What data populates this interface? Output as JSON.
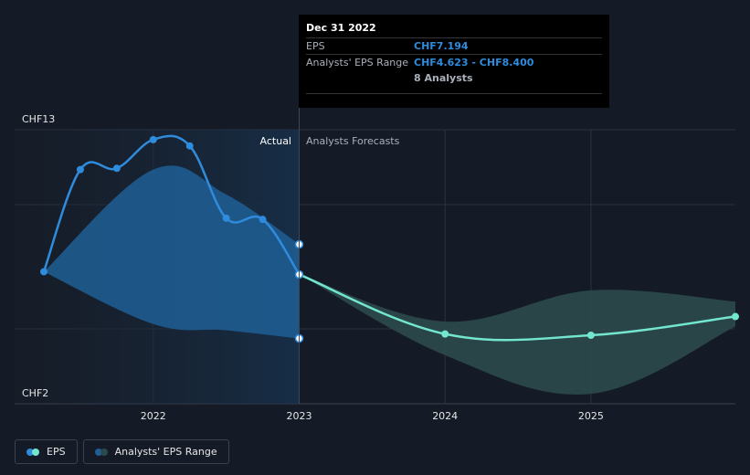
{
  "colors": {
    "background": "#151b26",
    "eps_actual": "#2f8bdc",
    "eps_forecast": "#73e6cf",
    "range_actual": "#1f5f95",
    "range_forecast": "#2b4a4c",
    "grid": "#2a3140"
  },
  "tooltip": {
    "date": "Dec 31 2022",
    "eps_label": "EPS",
    "eps_value": "CHF7.194",
    "range_label": "Analysts' EPS Range",
    "range_value": "CHF4.623 - CHF8.400",
    "analysts": "8 Analysts"
  },
  "labels": {
    "actual": "Actual",
    "forecast": "Analysts Forecasts"
  },
  "legend": {
    "eps": "EPS",
    "range": "Analysts' EPS Range"
  },
  "chart_data": {
    "type": "line",
    "y_labels": [
      "CHF13",
      "CHF2"
    ],
    "ylim": [
      2,
      13
    ],
    "xlim": [
      2021.25,
      2025.99
    ],
    "x_ticks": [
      {
        "value": 2022,
        "label": "2022"
      },
      {
        "value": 2023,
        "label": "2023"
      },
      {
        "value": 2024,
        "label": "2024"
      },
      {
        "value": 2025,
        "label": "2025"
      }
    ],
    "divider_x": 2023,
    "series": [
      {
        "name": "EPS",
        "segment": "actual",
        "points": [
          [
            2021.25,
            7.3
          ],
          [
            2021.5,
            11.4
          ],
          [
            2021.75,
            11.45
          ],
          [
            2022.0,
            12.6
          ],
          [
            2022.25,
            12.35
          ],
          [
            2022.5,
            9.45
          ],
          [
            2022.75,
            9.4
          ],
          [
            2023.0,
            7.19
          ]
        ]
      },
      {
        "name": "EPS",
        "segment": "forecast",
        "points": [
          [
            2023.0,
            7.19
          ],
          [
            2024.0,
            4.8
          ],
          [
            2025.0,
            4.75
          ],
          [
            2025.99,
            5.5
          ]
        ]
      }
    ],
    "range": {
      "name": "Analysts' EPS Range",
      "actual_high": [
        [
          2021.25,
          7.3
        ],
        [
          2022.0,
          11.4
        ],
        [
          2022.5,
          10.4
        ],
        [
          2023.0,
          8.4
        ]
      ],
      "actual_low": [
        [
          2021.25,
          7.3
        ],
        [
          2022.0,
          5.2
        ],
        [
          2022.5,
          4.95
        ],
        [
          2023.0,
          4.62
        ]
      ],
      "forecast_high": [
        [
          2023.0,
          7.2
        ],
        [
          2024.0,
          5.3
        ],
        [
          2025.0,
          6.55
        ],
        [
          2025.99,
          6.1
        ]
      ],
      "forecast_low": [
        [
          2023.0,
          7.2
        ],
        [
          2024.0,
          3.95
        ],
        [
          2025.0,
          2.4
        ],
        [
          2025.99,
          5.1
        ]
      ]
    },
    "tooltip_markers": [
      [
        2023.0,
        8.4
      ],
      [
        2023.0,
        7.19
      ],
      [
        2023.0,
        4.62
      ]
    ]
  }
}
